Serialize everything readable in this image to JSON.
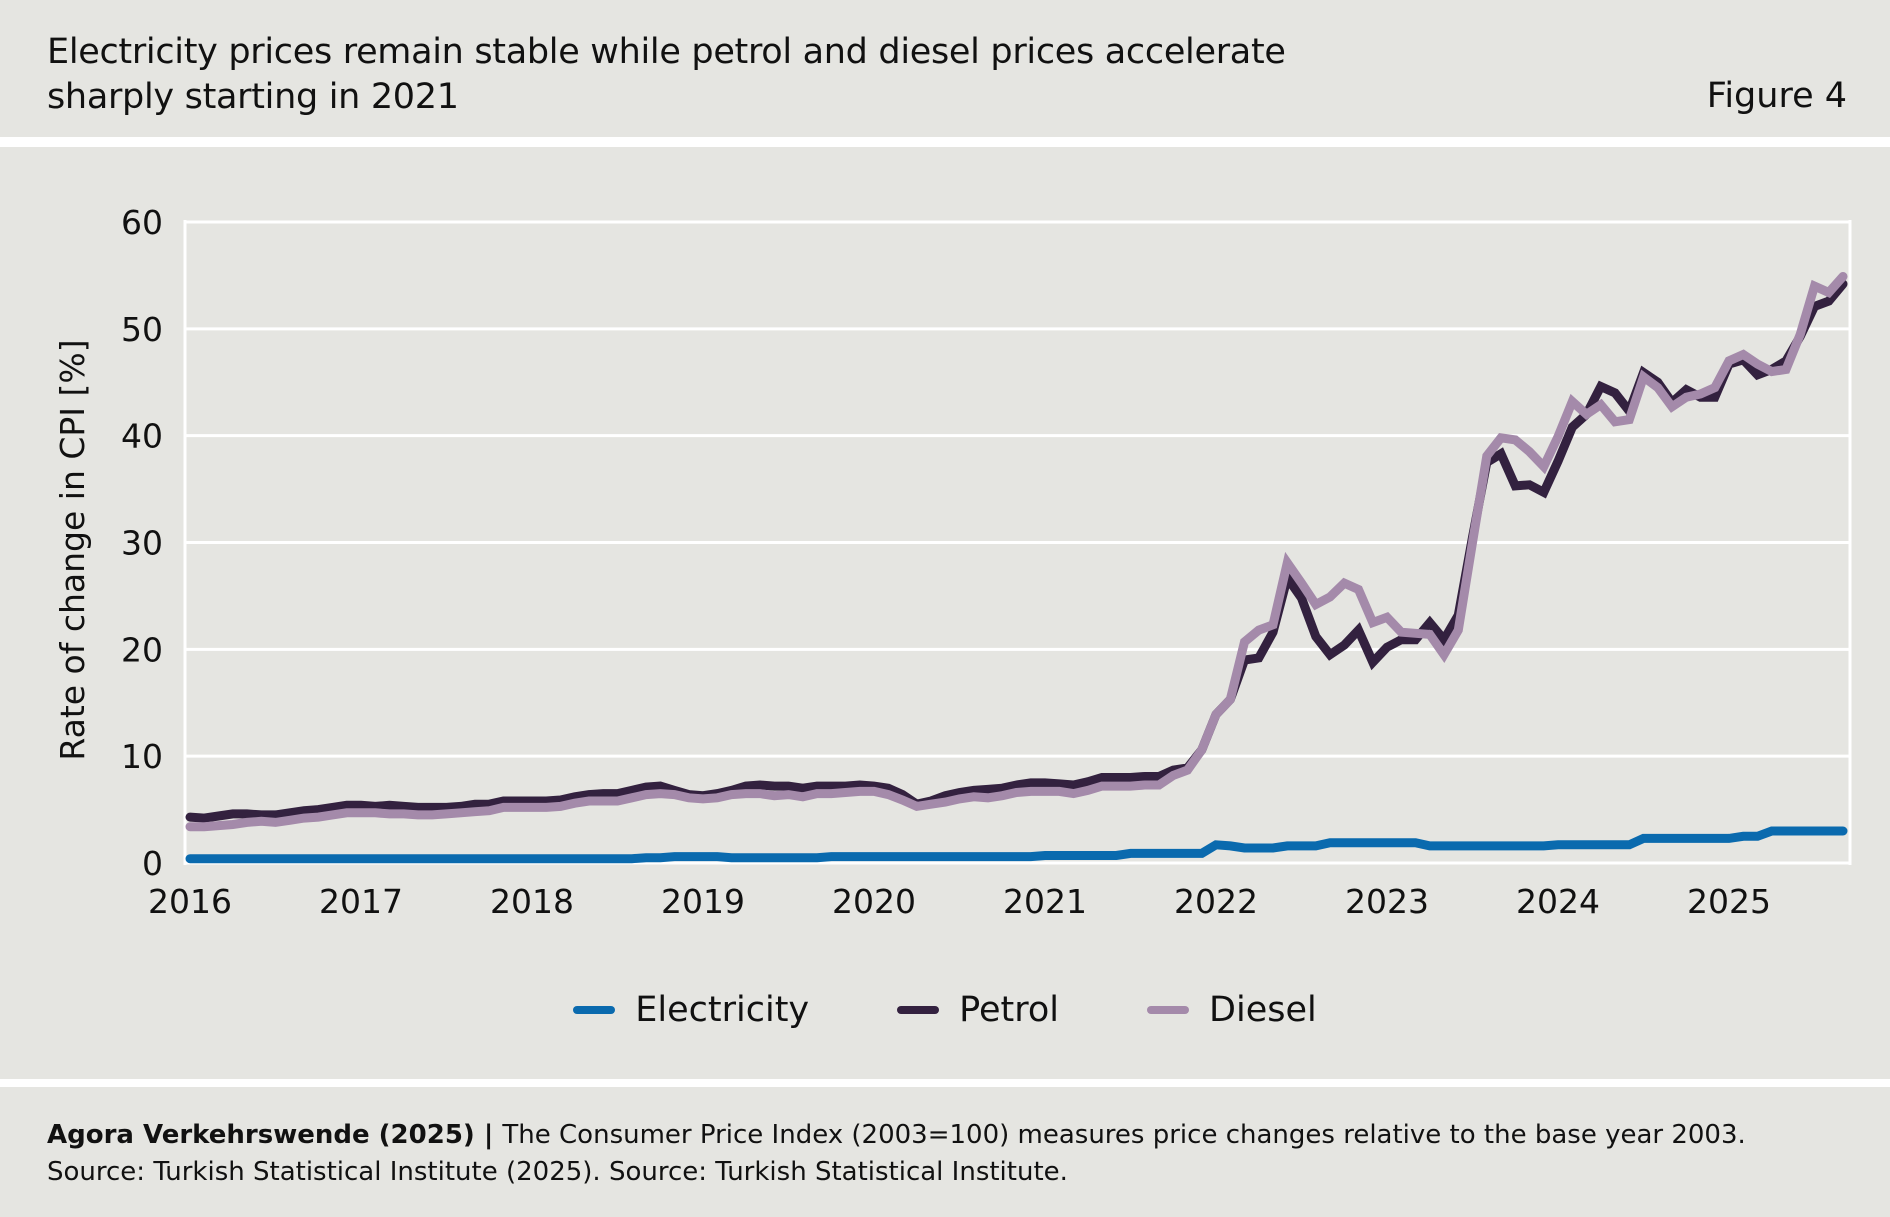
{
  "header": {
    "title_line1": "Electricity prices remain stable while petrol and diesel prices accelerate",
    "title_line2": "sharply starting in 2021",
    "figure_label": "Figure 4"
  },
  "footer": {
    "source_bold": "Agora Verkehrswende (2025) | ",
    "note": "The Consumer Price Index (2003=100) measures price changes relative to the base year 2003.",
    "source_line": "Source: Turkish Statistical Institute (2025). Source: Turkish Statistical Institute."
  },
  "colors": {
    "background": "#e5e5e1",
    "grid": "#ffffff",
    "electricity": "#0a6aae",
    "petrol": "#33213f",
    "diesel": "#a48aaa"
  },
  "chart_data": {
    "type": "line",
    "title": "Electricity prices remain stable while petrol and diesel prices accelerate sharply starting in 2021",
    "xlabel": "",
    "ylabel": "Rate of change in CPI [%]",
    "x_start": "2016-01",
    "x_end": "2025-09",
    "x_frequency": "monthly",
    "x_ticks": [
      "2016",
      "2017",
      "2018",
      "2019",
      "2020",
      "2021",
      "2022",
      "2023",
      "2024",
      "2025"
    ],
    "y_ticks": [
      0,
      10,
      20,
      30,
      40,
      50,
      60
    ],
    "ylim": [
      0,
      60
    ],
    "grid": true,
    "legend_position": "bottom-center",
    "series": [
      {
        "name": "Electricity",
        "color": "#0a6aae",
        "values": [
          0.4,
          0.4,
          0.4,
          0.4,
          0.4,
          0.4,
          0.4,
          0.4,
          0.4,
          0.4,
          0.4,
          0.4,
          0.4,
          0.4,
          0.4,
          0.4,
          0.4,
          0.4,
          0.4,
          0.4,
          0.4,
          0.4,
          0.4,
          0.4,
          0.4,
          0.4,
          0.4,
          0.4,
          0.4,
          0.4,
          0.4,
          0.4,
          0.5,
          0.5,
          0.6,
          0.6,
          0.6,
          0.6,
          0.5,
          0.5,
          0.5,
          0.5,
          0.5,
          0.5,
          0.5,
          0.6,
          0.6,
          0.6,
          0.6,
          0.6,
          0.6,
          0.6,
          0.6,
          0.6,
          0.6,
          0.6,
          0.6,
          0.6,
          0.6,
          0.6,
          0.7,
          0.7,
          0.7,
          0.7,
          0.7,
          0.7,
          0.9,
          0.9,
          0.9,
          0.9,
          0.9,
          0.9,
          1.7,
          1.6,
          1.4,
          1.4,
          1.4,
          1.6,
          1.6,
          1.6,
          1.9,
          1.9,
          1.9,
          1.9,
          1.9,
          1.9,
          1.9,
          1.6,
          1.6,
          1.6,
          1.6,
          1.6,
          1.6,
          1.6,
          1.6,
          1.6,
          1.7,
          1.7,
          1.7,
          1.7,
          1.7,
          1.7,
          2.3,
          2.3,
          2.3,
          2.3,
          2.3,
          2.3,
          2.3,
          2.5,
          2.5,
          3.0,
          3.0,
          3.0,
          3.0,
          3.0,
          3.0
        ]
      },
      {
        "name": "Petrol",
        "color": "#33213f",
        "values": [
          4.3,
          4.2,
          4.4,
          4.6,
          4.6,
          4.5,
          4.5,
          4.7,
          4.9,
          5.0,
          5.2,
          5.4,
          5.4,
          5.3,
          5.4,
          5.3,
          5.2,
          5.2,
          5.2,
          5.3,
          5.5,
          5.5,
          5.8,
          5.8,
          5.8,
          5.8,
          5.9,
          6.2,
          6.4,
          6.5,
          6.5,
          6.8,
          7.1,
          7.2,
          6.8,
          6.4,
          6.3,
          6.5,
          6.8,
          7.2,
          7.3,
          7.2,
          7.2,
          7.0,
          7.2,
          7.2,
          7.2,
          7.3,
          7.2,
          7.0,
          6.4,
          5.5,
          5.8,
          6.3,
          6.6,
          6.8,
          6.9,
          7.0,
          7.3,
          7.5,
          7.5,
          7.4,
          7.3,
          7.6,
          8.0,
          8.0,
          8.0,
          8.1,
          8.1,
          8.7,
          8.9,
          10.6,
          13.9,
          15.3,
          19.0,
          19.2,
          21.6,
          26.7,
          24.8,
          21.2,
          19.5,
          20.4,
          21.8,
          18.8,
          20.2,
          20.9,
          20.9,
          22.5,
          20.9,
          23.2,
          30.5,
          37.5,
          38.3,
          35.3,
          35.4,
          34.7,
          37.6,
          40.8,
          42.0,
          44.6,
          44.0,
          42.3,
          45.9,
          45.0,
          43.1,
          44.3,
          43.6,
          43.6,
          46.7,
          47.1,
          45.7,
          46.2,
          47.0,
          49.3,
          52.1,
          52.6,
          54.2
        ]
      },
      {
        "name": "Diesel",
        "color": "#a48aaa",
        "values": [
          3.4,
          3.4,
          3.5,
          3.6,
          3.8,
          3.9,
          3.8,
          4.0,
          4.2,
          4.3,
          4.5,
          4.7,
          4.7,
          4.7,
          4.6,
          4.6,
          4.5,
          4.5,
          4.6,
          4.7,
          4.8,
          4.9,
          5.2,
          5.2,
          5.2,
          5.2,
          5.3,
          5.6,
          5.8,
          5.8,
          5.8,
          6.1,
          6.4,
          6.5,
          6.4,
          6.1,
          6.0,
          6.1,
          6.4,
          6.5,
          6.5,
          6.3,
          6.4,
          6.2,
          6.5,
          6.5,
          6.6,
          6.7,
          6.7,
          6.4,
          5.9,
          5.3,
          5.5,
          5.7,
          6.0,
          6.2,
          6.1,
          6.3,
          6.6,
          6.7,
          6.7,
          6.7,
          6.5,
          6.8,
          7.2,
          7.2,
          7.2,
          7.3,
          7.3,
          8.2,
          8.7,
          10.6,
          13.9,
          15.3,
          20.7,
          21.8,
          22.3,
          28.1,
          26.2,
          24.2,
          24.9,
          26.2,
          25.6,
          22.5,
          23.0,
          21.6,
          21.5,
          21.4,
          19.5,
          21.8,
          30.0,
          38.1,
          39.8,
          39.6,
          38.5,
          37.1,
          39.9,
          43.2,
          42.0,
          42.9,
          41.3,
          41.5,
          45.5,
          44.5,
          42.7,
          43.6,
          43.9,
          44.5,
          47.0,
          47.6,
          46.7,
          46.0,
          46.2,
          49.5,
          54.0,
          53.4,
          54.9
        ]
      }
    ]
  }
}
